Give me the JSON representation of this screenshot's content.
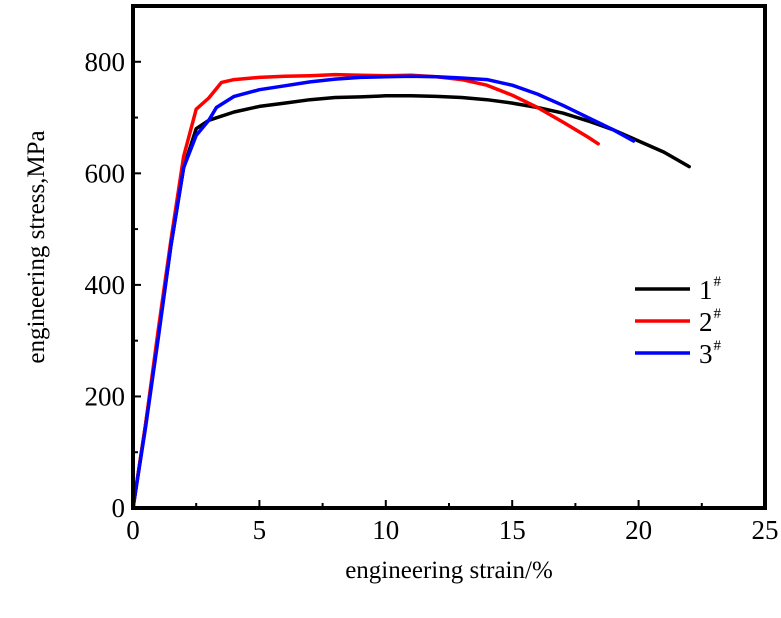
{
  "chart_data": {
    "type": "line",
    "title": "",
    "xlabel": "engineering strain/%",
    "ylabel": "engineering stress,MPa",
    "xlim": [
      0,
      25
    ],
    "ylim": [
      0,
      900
    ],
    "xticks": [
      0,
      5,
      10,
      15,
      20,
      25
    ],
    "yticks": [
      0,
      200,
      400,
      600,
      800
    ],
    "grid": false,
    "legend_position": "right-middle",
    "series": [
      {
        "name": "1",
        "name_superscript": "#",
        "color": "#000000",
        "x": [
          0,
          0.5,
          1.0,
          1.5,
          2.0,
          2.5,
          3.0,
          4.0,
          5.0,
          6.0,
          7.0,
          8.0,
          9.0,
          10.0,
          11.0,
          12.0,
          13.0,
          14.0,
          15.0,
          16.0,
          17.0,
          18.0,
          19.0,
          20.0,
          21.0,
          22.0
        ],
        "y": [
          0,
          150,
          310,
          470,
          610,
          680,
          695,
          710,
          720,
          726,
          732,
          736,
          737,
          739,
          739,
          738,
          736,
          732,
          726,
          718,
          708,
          694,
          678,
          658,
          638,
          612
        ]
      },
      {
        "name": "2",
        "name_superscript": "#",
        "color": "#ff0000",
        "x": [
          0,
          0.5,
          1.0,
          1.5,
          2.0,
          2.5,
          3.0,
          3.5,
          4.0,
          5.0,
          6.0,
          7.0,
          8.0,
          9.0,
          10.0,
          11.0,
          12.0,
          13.0,
          14.0,
          15.0,
          16.0,
          17.0,
          18.0,
          18.4
        ],
        "y": [
          0,
          150,
          320,
          480,
          630,
          715,
          735,
          763,
          768,
          772,
          774,
          775,
          777,
          776,
          775,
          776,
          773,
          768,
          758,
          740,
          718,
          692,
          665,
          653
        ]
      },
      {
        "name": "3",
        "name_superscript": "#",
        "color": "#0000ff",
        "x": [
          0,
          0.5,
          1.0,
          1.5,
          2.0,
          2.5,
          3.0,
          3.3,
          4.0,
          5.0,
          6.0,
          7.0,
          8.0,
          9.0,
          10.0,
          11.0,
          12.0,
          13.0,
          14.0,
          15.0,
          16.0,
          17.0,
          18.0,
          19.0,
          19.8
        ],
        "y": [
          0,
          145,
          305,
          470,
          610,
          668,
          695,
          718,
          738,
          750,
          757,
          764,
          769,
          772,
          773,
          774,
          773,
          771,
          768,
          758,
          742,
          722,
          700,
          678,
          658
        ]
      }
    ]
  }
}
